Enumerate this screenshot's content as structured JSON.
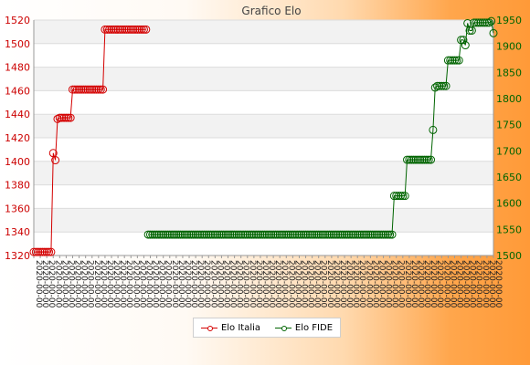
{
  "chart_data": {
    "type": "line",
    "title": "Grafico Elo",
    "legend_position": "bottom-center",
    "grid": true,
    "x_tick_labels_note": "dense overlapping date labels (illegible)",
    "series": [
      {
        "name": "Elo Italia",
        "axis": "left",
        "color": "#d40000",
        "segments": [
          {
            "count": 9,
            "value": 1323
          },
          {
            "count": 1,
            "value": 1407
          },
          {
            "count": 1,
            "value": 1401
          },
          {
            "count": 1,
            "value": 1436
          },
          {
            "count": 6,
            "value": 1437
          },
          {
            "count": 15,
            "value": 1461
          },
          {
            "count": 20,
            "value": 1512
          }
        ]
      },
      {
        "name": "Elo FIDE",
        "axis": "right",
        "color": "#006400",
        "segments": [
          {
            "count": 114,
            "value": 1540
          },
          {
            "count": 6,
            "value": 1614
          },
          {
            "count": 12,
            "value": 1683
          },
          {
            "count": 1,
            "value": 1740
          },
          {
            "count": 1,
            "value": 1821
          },
          {
            "count": 5,
            "value": 1824
          },
          {
            "count": 6,
            "value": 1873
          },
          {
            "count": 2,
            "value": 1912
          },
          {
            "count": 1,
            "value": 1902
          },
          {
            "count": 1,
            "value": 1944
          },
          {
            "count": 2,
            "value": 1930
          },
          {
            "count": 8,
            "value": 1945
          },
          {
            "count": 1,
            "value": 1948
          },
          {
            "count": 1,
            "value": 1925
          }
        ]
      }
    ],
    "y_left": {
      "min": 1320,
      "max": 1520,
      "ticks": [
        1320,
        1340,
        1360,
        1380,
        1400,
        1420,
        1440,
        1460,
        1480,
        1500,
        1520
      ],
      "color": "#cc0000"
    },
    "y_right": {
      "min": 1500,
      "max": 1950,
      "ticks": [
        1500,
        1550,
        1600,
        1650,
        1700,
        1750,
        1800,
        1850,
        1900,
        1950
      ],
      "color": "#006400"
    }
  }
}
